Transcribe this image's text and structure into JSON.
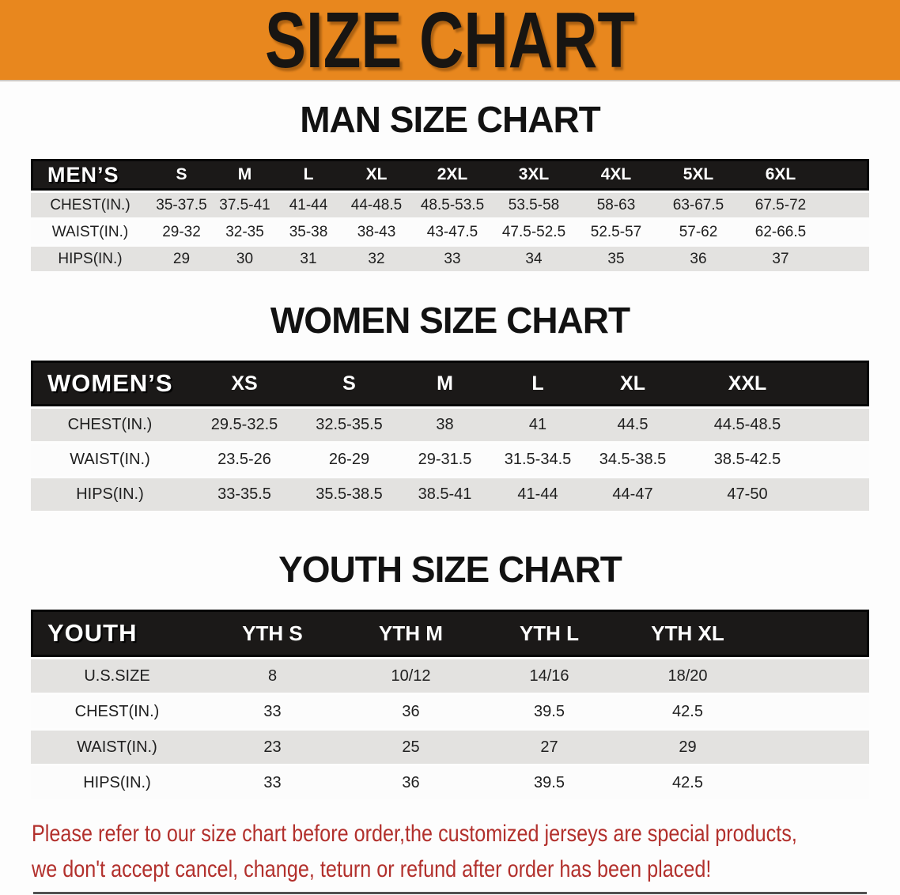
{
  "banner": {
    "title": "SIZE CHART",
    "background": "#E8871E",
    "text_color": "#181512"
  },
  "sections": [
    {
      "title": "MAN SIZE CHART",
      "table": {
        "corner_label": "MEN’S",
        "columns": [
          "S",
          "M",
          "L",
          "XL",
          "2XL",
          "3XL",
          "4XL",
          "5XL",
          "6XL"
        ],
        "rows": [
          {
            "label": "CHEST(IN.)",
            "values": [
              "35-37.5",
              "37.5-41",
              "41-44",
              "44-48.5",
              "48.5-53.5",
              "53.5-58",
              "58-63",
              "63-67.5",
              "67.5-72"
            ]
          },
          {
            "label": "WAIST(IN.)",
            "values": [
              "29-32",
              "32-35",
              "35-38",
              "38-43",
              "43-47.5",
              "47.5-52.5",
              "52.5-57",
              "57-62",
              "62-66.5"
            ]
          },
          {
            "label": "HIPS(IN.)",
            "values": [
              "29",
              "30",
              "31",
              "32",
              "33",
              "34",
              "35",
              "36",
              "37"
            ]
          }
        ]
      }
    },
    {
      "title": "WOMEN SIZE CHART",
      "table": {
        "corner_label": "WOMEN’S",
        "columns": [
          "XS",
          "S",
          "M",
          "L",
          "XL",
          "XXL"
        ],
        "rows": [
          {
            "label": "CHEST(IN.)",
            "values": [
              "29.5-32.5",
              "32.5-35.5",
              "38",
              "41",
              "44.5",
              "44.5-48.5"
            ]
          },
          {
            "label": "WAIST(IN.)",
            "values": [
              "23.5-26",
              "26-29",
              "29-31.5",
              "31.5-34.5",
              "34.5-38.5",
              "38.5-42.5"
            ]
          },
          {
            "label": "HIPS(IN.)",
            "values": [
              "33-35.5",
              "35.5-38.5",
              "38.5-41",
              "41-44",
              "44-47",
              "47-50"
            ]
          }
        ]
      }
    },
    {
      "title": "YOUTH SIZE CHART",
      "table": {
        "corner_label": "YOUTH",
        "columns": [
          "YTH S",
          "YTH M",
          "YTH L",
          "YTH XL"
        ],
        "rows": [
          {
            "label": "U.S.SIZE",
            "values": [
              "8",
              "10/12",
              "14/16",
              "18/20"
            ]
          },
          {
            "label": "CHEST(IN.)",
            "values": [
              "33",
              "36",
              "39.5",
              "42.5"
            ]
          },
          {
            "label": "WAIST(IN.)",
            "values": [
              "23",
              "25",
              "27",
              "29"
            ]
          },
          {
            "label": "HIPS(IN.)",
            "values": [
              "33",
              "36",
              "39.5",
              "42.5"
            ]
          }
        ]
      }
    }
  ],
  "disclaimer": {
    "line1": "Please refer to our size chart before order,the customized jerseys are special products,",
    "line2": "we don't accept cancel, change, teturn or refund after order has been placed!",
    "color": "#b2302c"
  }
}
